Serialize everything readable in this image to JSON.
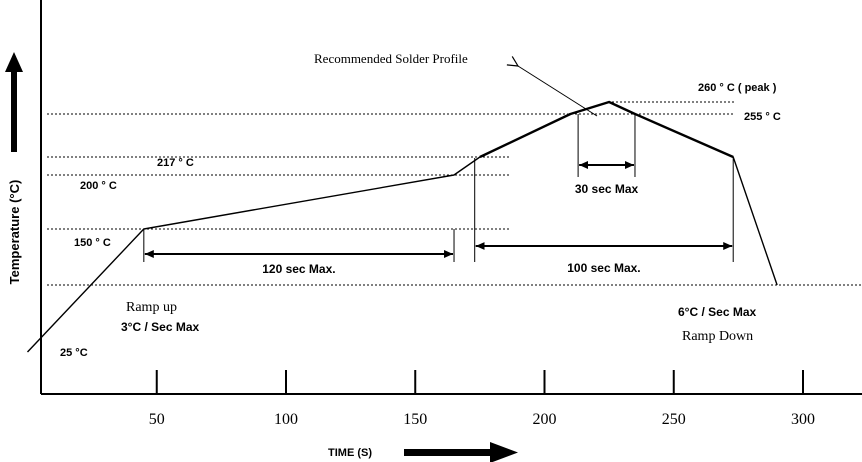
{
  "chart_data": {
    "type": "line",
    "title": "Recommended Solder Profile",
    "ylabel": "Temperature (°C)",
    "xlabel": "TIME  (S)",
    "x_ticks": [
      50,
      100,
      150,
      200,
      250,
      300
    ],
    "series": [
      {
        "name": "Recommended Solder Profile",
        "points": [
          {
            "x": 0,
            "y": 25
          },
          {
            "x": 45,
            "y": 150
          },
          {
            "x": 165,
            "y": 200
          },
          {
            "x": 175,
            "y": 217
          },
          {
            "x": 210,
            "y": 255
          },
          {
            "x": 225,
            "y": 260
          },
          {
            "x": 235,
            "y": 255
          },
          {
            "x": 273,
            "y": 217
          },
          {
            "x": 290,
            "y": 127
          }
        ]
      }
    ],
    "reference_lines": [
      {
        "label": "260 ° C  ( peak )",
        "y": 260
      },
      {
        "label": "255 ° C",
        "y": 255
      },
      {
        "label": "217 ° C",
        "y": 217
      },
      {
        "label": "200 ° C",
        "y": 200
      },
      {
        "label": "150 ° C",
        "y": 150
      },
      {
        "label": "",
        "y": 127
      }
    ],
    "start_label": "25  °C",
    "intervals": [
      {
        "label": "120 sec Max.",
        "from": 45,
        "to": 165
      },
      {
        "label": "100 sec Max.",
        "from": 173,
        "to": 273
      },
      {
        "label": "30 sec Max",
        "from": 213,
        "to": 235
      }
    ],
    "annotations": {
      "ramp_up_title": "Ramp up",
      "ramp_up_rate": "3°C / Sec Max",
      "ramp_down_rate": "6°C / Sec Max",
      "ramp_down_title": "Ramp Down"
    },
    "xlim": [
      0,
      300
    ],
    "ylim": [
      0,
      275
    ]
  }
}
